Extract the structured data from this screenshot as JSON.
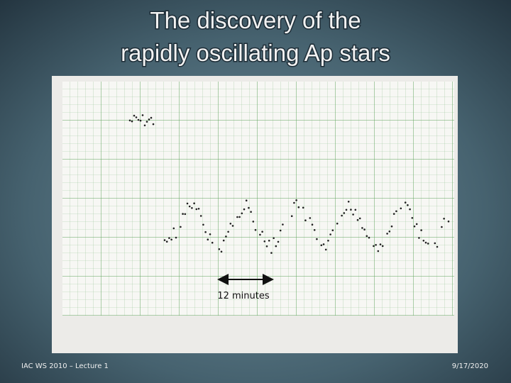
{
  "slide": {
    "title": [
      "The discovery of the",
      "rapidly oscillating Ap stars"
    ],
    "annotation": "12 minutes",
    "footer": {
      "left": "IAC WS 2010 – Lecture 1",
      "right": "9/17/2020"
    }
  }
}
